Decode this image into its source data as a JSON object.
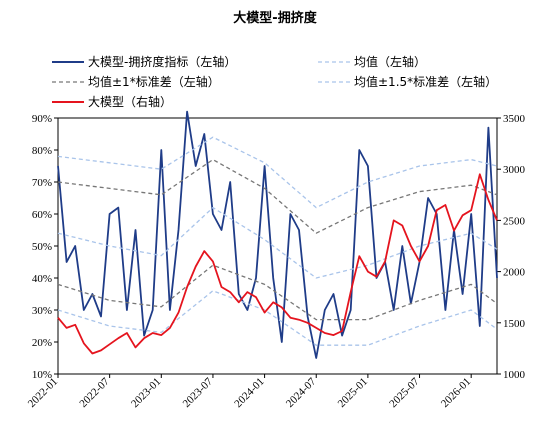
{
  "chart_data": {
    "type": "line",
    "title": "大模型-拥挤度",
    "legend_position": "top",
    "grid": false,
    "x_ticks": [
      "2022-01",
      "2022-07",
      "2023-01",
      "2023-07",
      "2024-01",
      "2024-07",
      "2025-01",
      "2025-07",
      "2026-01"
    ],
    "x_range": [
      "2022-01",
      "2026-04"
    ],
    "left_axis": {
      "range": [
        10,
        90
      ],
      "ticks": [
        "10%",
        "20%",
        "30%",
        "40%",
        "50%",
        "60%",
        "70%",
        "80%",
        "90%"
      ]
    },
    "right_axis": {
      "range": [
        1000,
        3500
      ],
      "ticks": [
        "1000",
        "1500",
        "2000",
        "2500",
        "3000",
        "3500"
      ]
    },
    "series": [
      {
        "name": "大模型-拥挤度指标（左轴）",
        "axis": "left",
        "color": "#1f3c88",
        "style": "solid",
        "x": [
          "2022-01",
          "2022-02",
          "2022-03",
          "2022-04",
          "2022-05",
          "2022-06",
          "2022-07",
          "2022-08",
          "2022-09",
          "2022-10",
          "2022-11",
          "2022-12",
          "2023-01",
          "2023-02",
          "2023-03",
          "2023-04",
          "2023-05",
          "2023-06",
          "2023-07",
          "2023-08",
          "2023-09",
          "2023-10",
          "2023-11",
          "2023-12",
          "2024-01",
          "2024-02",
          "2024-03",
          "2024-04",
          "2024-05",
          "2024-06",
          "2024-07",
          "2024-08",
          "2024-09",
          "2024-10",
          "2024-11",
          "2024-12",
          "2025-01",
          "2025-02",
          "2025-03",
          "2025-04",
          "2025-05",
          "2025-06",
          "2025-07",
          "2025-08",
          "2025-09",
          "2025-10",
          "2025-11",
          "2025-12",
          "2026-01",
          "2026-02",
          "2026-03",
          "2026-04"
        ],
        "values": [
          75,
          45,
          50,
          30,
          35,
          28,
          60,
          62,
          30,
          55,
          22,
          30,
          80,
          30,
          55,
          92,
          75,
          85,
          60,
          55,
          70,
          35,
          30,
          40,
          75,
          40,
          20,
          60,
          55,
          28,
          15,
          30,
          35,
          22,
          30,
          80,
          75,
          40,
          45,
          30,
          50,
          32,
          45,
          65,
          60,
          30,
          55,
          35,
          60,
          25,
          87,
          40
        ]
      },
      {
        "name": "均值（左轴）",
        "axis": "left",
        "color": "#a9c4ea",
        "style": "dash",
        "x": [
          "2022-01",
          "2022-07",
          "2023-01",
          "2023-07",
          "2024-01",
          "2024-07",
          "2025-01",
          "2025-07",
          "2026-01",
          "2026-04"
        ],
        "values": [
          54,
          50,
          47,
          62,
          52,
          40,
          44,
          50,
          54,
          49
        ]
      },
      {
        "name": "均值±1*标准差（左轴）",
        "axis": "left",
        "color": "#777777",
        "style": "dash",
        "x": [
          "2022-01",
          "2022-07",
          "2023-01",
          "2023-07",
          "2024-01",
          "2024-07",
          "2025-01",
          "2025-07",
          "2026-01",
          "2026-04"
        ],
        "values_upper": [
          70,
          68,
          66,
          77,
          68,
          54,
          62,
          67,
          69,
          66
        ],
        "values_lower": [
          38,
          33,
          31,
          44,
          38,
          27,
          27,
          33,
          38,
          32
        ]
      },
      {
        "name": "均值±1.5*标准差（左轴）",
        "axis": "left",
        "color": "#a9c4ea",
        "style": "dash",
        "x": [
          "2022-01",
          "2022-07",
          "2023-01",
          "2023-07",
          "2024-01",
          "2024-07",
          "2025-01",
          "2025-07",
          "2026-01",
          "2026-04"
        ],
        "values_upper": [
          78,
          76,
          74,
          84,
          76,
          62,
          70,
          75,
          77,
          75
        ],
        "values_lower": [
          30,
          25,
          23,
          36,
          30,
          19,
          19,
          25,
          30,
          24
        ]
      },
      {
        "name": "大模型（右轴）",
        "axis": "right",
        "color": "#e5141e",
        "style": "solid",
        "x": [
          "2022-01",
          "2022-02",
          "2022-03",
          "2022-04",
          "2022-05",
          "2022-06",
          "2022-07",
          "2022-08",
          "2022-09",
          "2022-10",
          "2022-11",
          "2022-12",
          "2023-01",
          "2023-02",
          "2023-03",
          "2023-04",
          "2023-05",
          "2023-06",
          "2023-07",
          "2023-08",
          "2023-09",
          "2023-10",
          "2023-11",
          "2023-12",
          "2024-01",
          "2024-02",
          "2024-03",
          "2024-04",
          "2024-05",
          "2024-06",
          "2024-07",
          "2024-08",
          "2024-09",
          "2024-10",
          "2024-11",
          "2024-12",
          "2025-01",
          "2025-02",
          "2025-03",
          "2025-04",
          "2025-05",
          "2025-06",
          "2025-07",
          "2025-08",
          "2025-09",
          "2025-10",
          "2025-11",
          "2025-12",
          "2026-01",
          "2026-02",
          "2026-03",
          "2026-04"
        ],
        "values": [
          1550,
          1450,
          1480,
          1300,
          1200,
          1230,
          1290,
          1350,
          1400,
          1260,
          1350,
          1400,
          1380,
          1450,
          1600,
          1850,
          2050,
          2200,
          2100,
          1850,
          1800,
          1700,
          1800,
          1750,
          1600,
          1700,
          1650,
          1550,
          1530,
          1500,
          1450,
          1400,
          1380,
          1420,
          1800,
          2150,
          2000,
          1950,
          2100,
          2500,
          2450,
          2250,
          2100,
          2250,
          2600,
          2650,
          2400,
          2550,
          2600,
          2950,
          2700,
          2500
        ]
      }
    ]
  }
}
